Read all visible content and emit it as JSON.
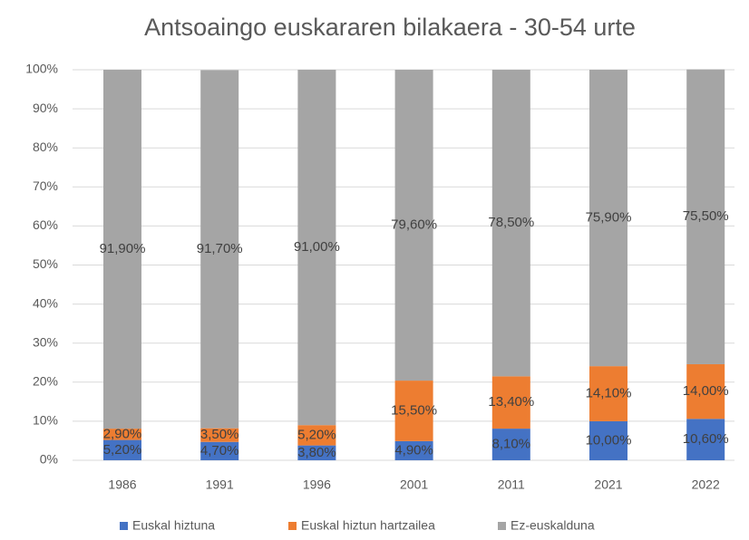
{
  "chart_data": {
    "type": "stacked_bar",
    "title": "Antsoaingo euskararen bilakaera - 30-54 urte",
    "categories": [
      "1986",
      "1991",
      "1996",
      "2001",
      "2011",
      "2021",
      "2022"
    ],
    "series": [
      {
        "name": "Euskal hiztuna",
        "color": "#4472c4",
        "values": [
          5.2,
          4.7,
          3.8,
          4.9,
          8.1,
          10.0,
          10.6
        ],
        "value_labels": [
          "5,20%",
          "4,70%",
          "3,80%",
          "4,90%",
          "8,10%",
          "10,00%",
          "10,60%"
        ]
      },
      {
        "name": "Euskal hiztun hartzailea",
        "color": "#ed7d31",
        "values": [
          2.9,
          3.5,
          5.2,
          15.5,
          13.4,
          14.1,
          14.0
        ],
        "value_labels": [
          "2,90%",
          "3,50%",
          "5,20%",
          "15,50%",
          "13,40%",
          "14,10%",
          "14,00%"
        ]
      },
      {
        "name": "Ez-euskalduna",
        "color": "#a5a5a5",
        "values": [
          91.9,
          91.7,
          91.0,
          79.6,
          78.5,
          75.9,
          75.5
        ],
        "value_labels": [
          "91,90%",
          "91,70%",
          "91,00%",
          "79,60%",
          "78,50%",
          "75,90%",
          "75,50%"
        ]
      }
    ],
    "ylim": [
      0,
      100
    ],
    "yticks": [
      {
        "value": 0,
        "label": "0%"
      },
      {
        "value": 10,
        "label": "10%"
      },
      {
        "value": 20,
        "label": "20%"
      },
      {
        "value": 30,
        "label": "30%"
      },
      {
        "value": 40,
        "label": "40%"
      },
      {
        "value": 50,
        "label": "50%"
      },
      {
        "value": 60,
        "label": "60%"
      },
      {
        "value": 70,
        "label": "70%"
      },
      {
        "value": 80,
        "label": "80%"
      },
      {
        "value": 90,
        "label": "90%"
      },
      {
        "value": 100,
        "label": "100%"
      }
    ],
    "grid": true,
    "legend": "bottom"
  }
}
